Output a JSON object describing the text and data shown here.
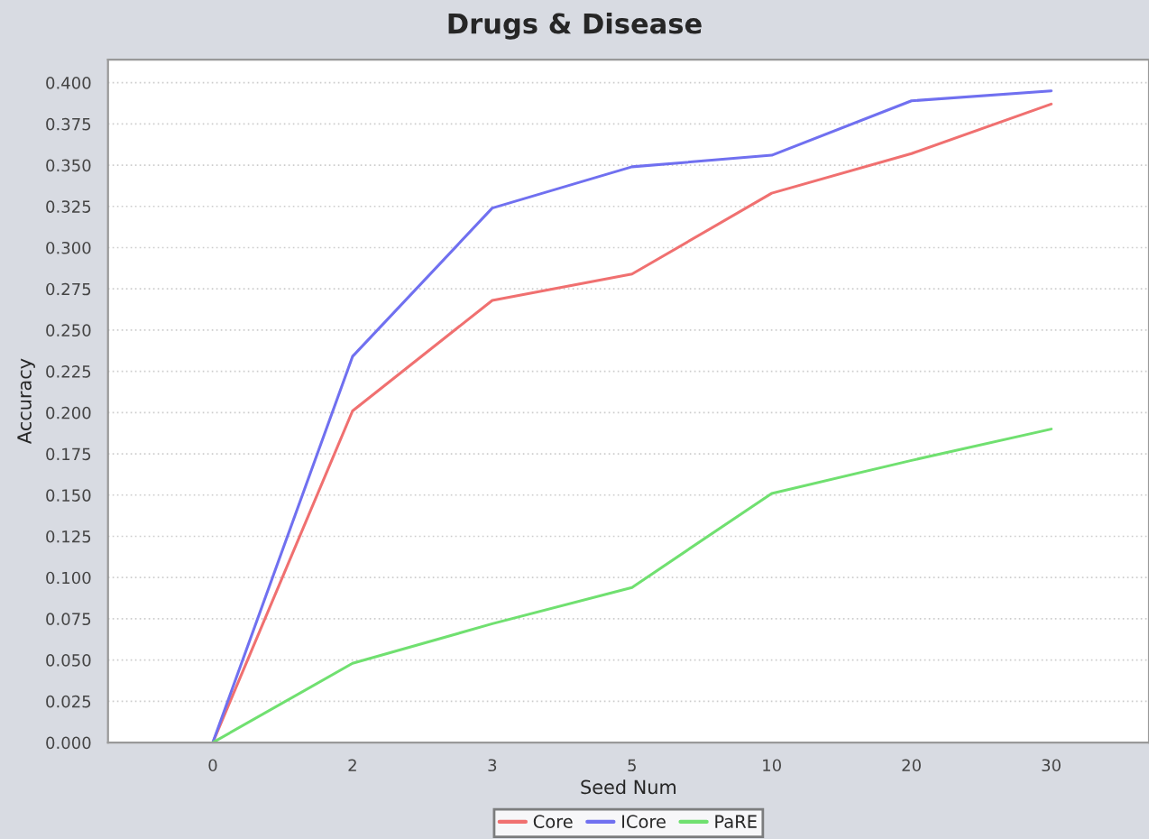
{
  "chart_data": {
    "type": "line",
    "title": "Drugs & Disease",
    "xlabel": "Seed Num",
    "ylabel": "Accuracy",
    "categories": [
      "0",
      "2",
      "3",
      "5",
      "10",
      "20",
      "30"
    ],
    "series": [
      {
        "name": "Core",
        "color": "#f07070",
        "values": [
          0,
          0.201,
          0.268,
          0.284,
          0.333,
          0.357,
          0.387
        ]
      },
      {
        "name": "ICore",
        "color": "#7070f0",
        "values": [
          0,
          0.234,
          0.324,
          0.349,
          0.356,
          0.389,
          0.395
        ]
      },
      {
        "name": "PaRE",
        "color": "#70e070",
        "values": [
          0,
          0.048,
          0.072,
          0.094,
          0.151,
          0.171,
          0.19
        ]
      }
    ],
    "ylim": [
      0,
      0.414
    ],
    "yticks": [
      {
        "value": 0,
        "label": "0.000"
      },
      {
        "value": 0.025,
        "label": "0.025"
      },
      {
        "value": 0.05,
        "label": "0.050"
      },
      {
        "value": 0.075,
        "label": "0.075"
      },
      {
        "value": 0.1,
        "label": "0.100"
      },
      {
        "value": 0.125,
        "label": "0.125"
      },
      {
        "value": 0.15,
        "label": "0.150"
      },
      {
        "value": 0.175,
        "label": "0.175"
      },
      {
        "value": 0.2,
        "label": "0.200"
      },
      {
        "value": 0.225,
        "label": "0.225"
      },
      {
        "value": 0.25,
        "label": "0.250"
      },
      {
        "value": 0.275,
        "label": "0.275"
      },
      {
        "value": 0.3,
        "label": "0.300"
      },
      {
        "value": 0.325,
        "label": "0.325"
      },
      {
        "value": 0.35,
        "label": "0.350"
      },
      {
        "value": 0.375,
        "label": "0.375"
      },
      {
        "value": 0.4,
        "label": "0.400"
      }
    ],
    "grid": "y",
    "legend": "bottom",
    "marker": "none",
    "line_style": "solid"
  }
}
